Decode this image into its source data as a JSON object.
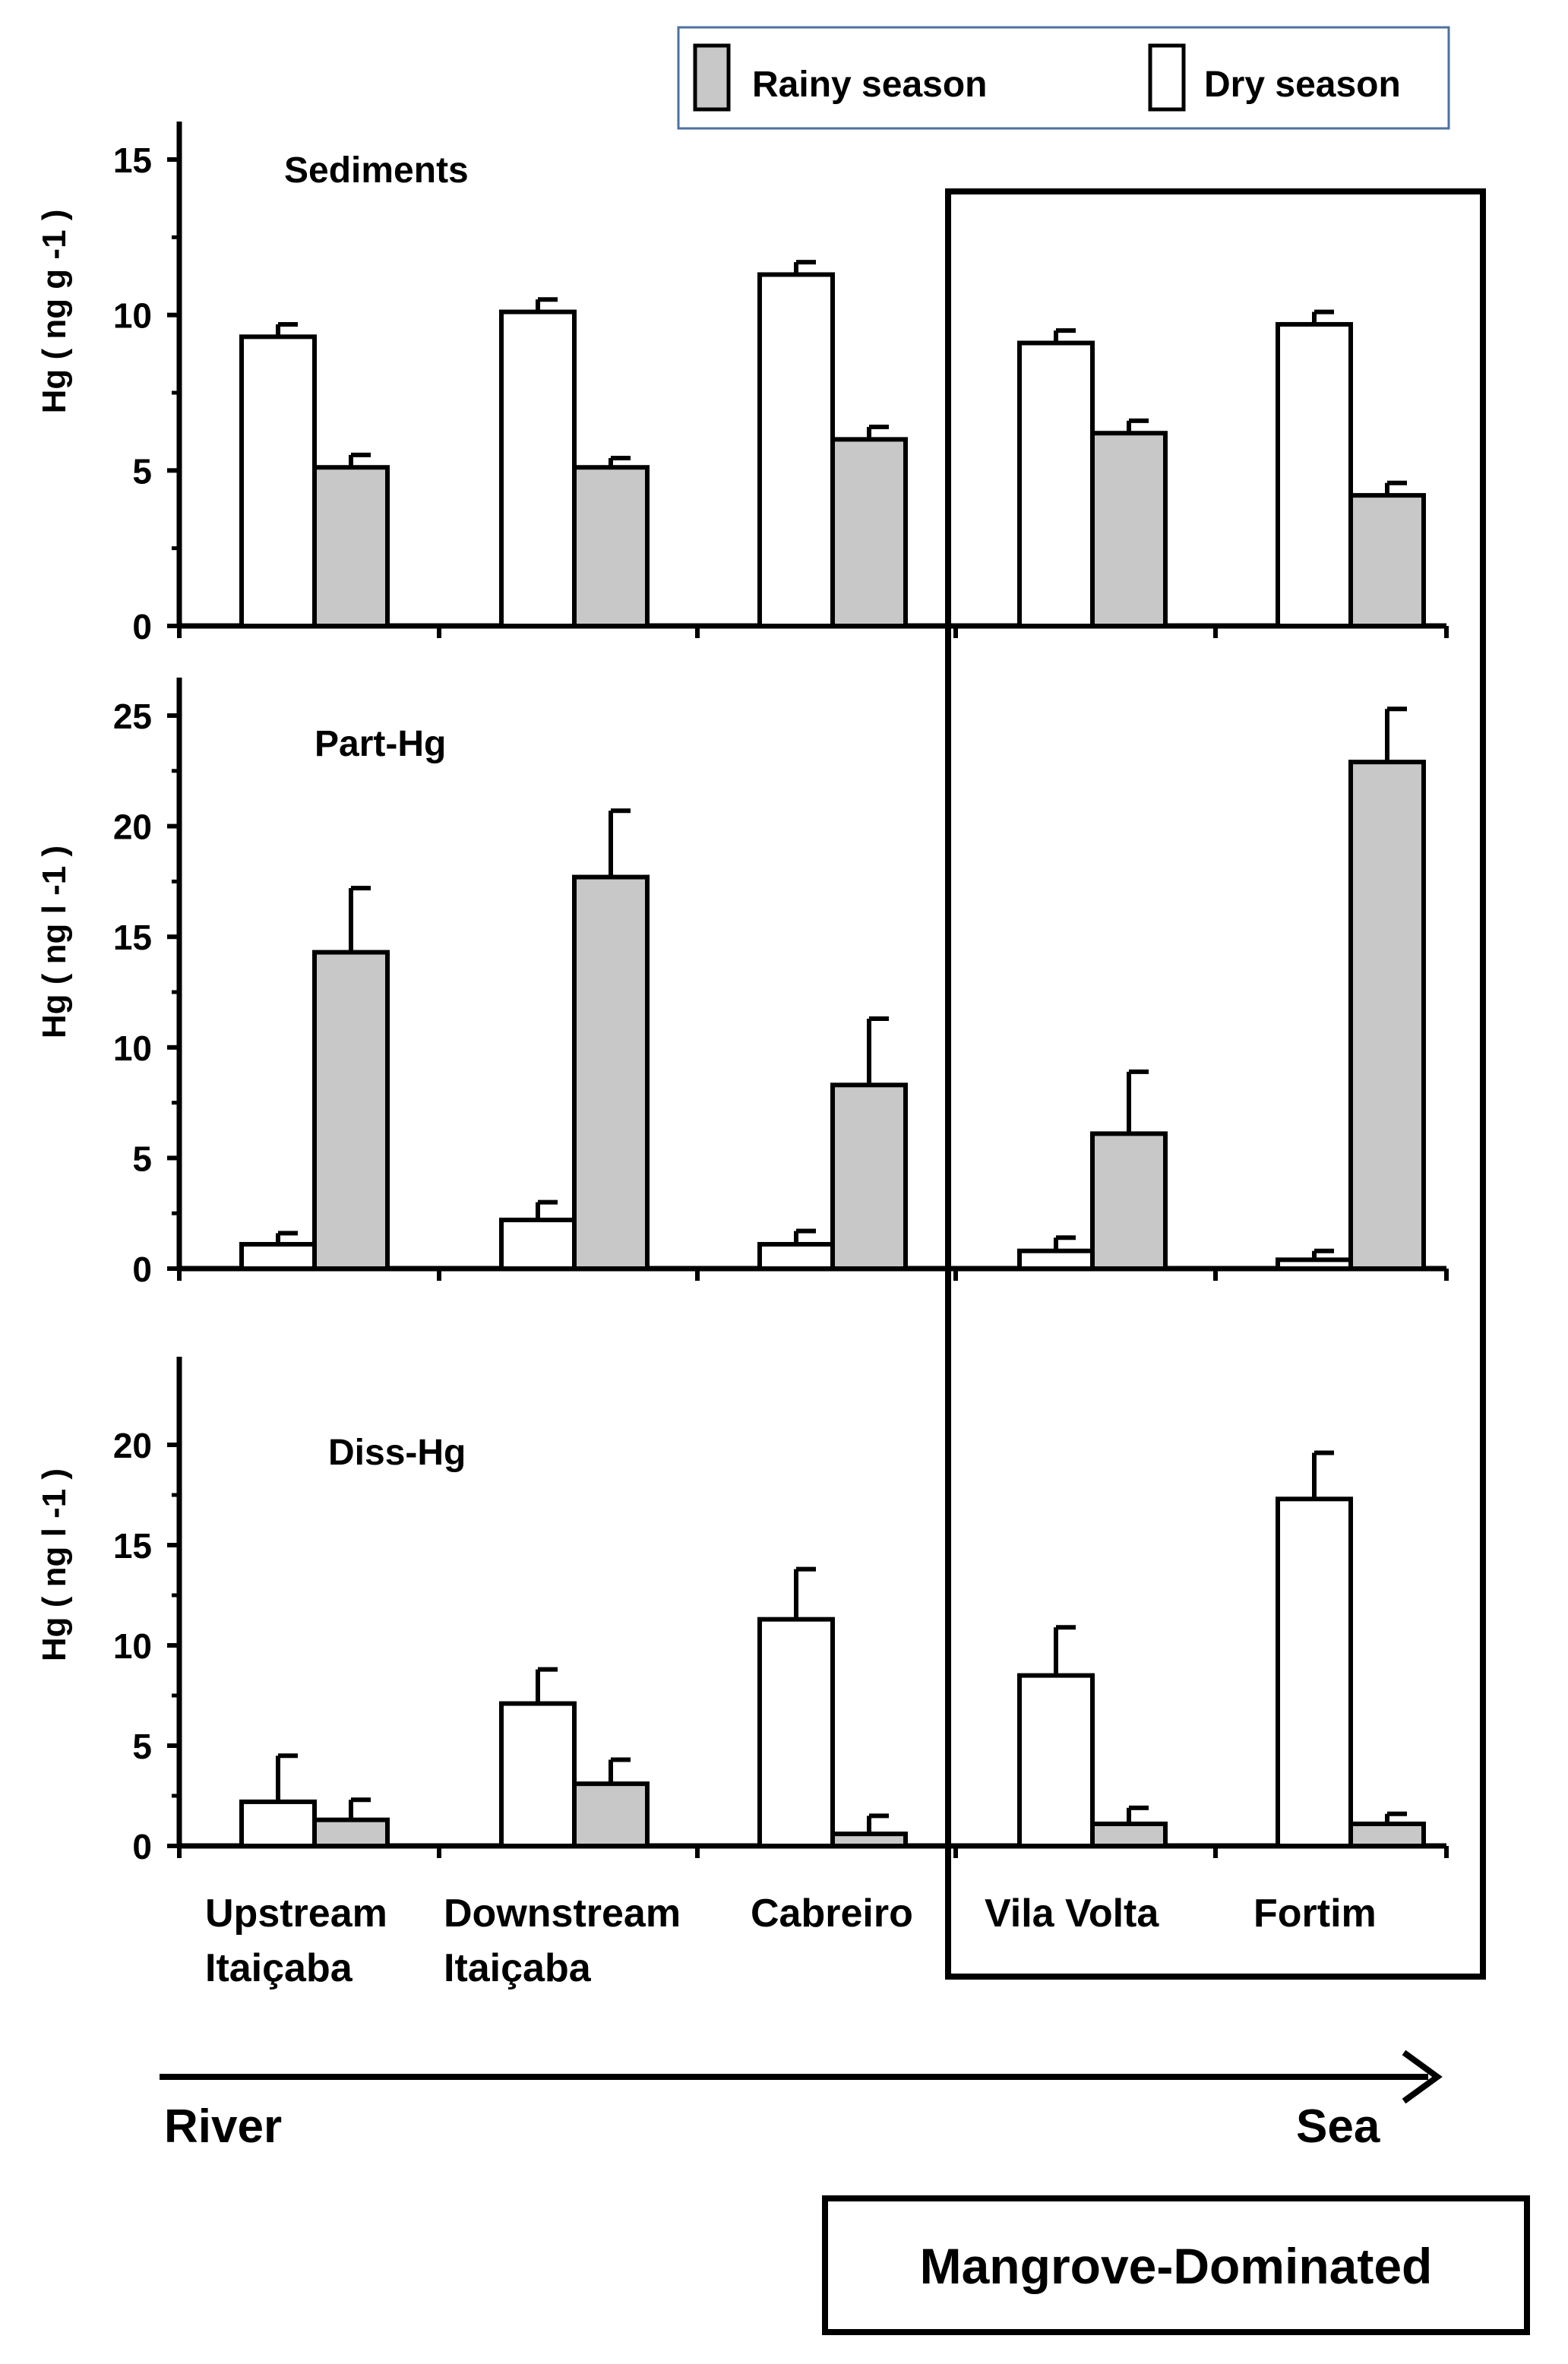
{
  "legend": {
    "rainy_label": "Rainy season",
    "dry_label": "Dry season"
  },
  "colors": {
    "rainy": "#c8c8c8",
    "dry": "#ffffff",
    "stroke": "#000000",
    "legend_border": "#4f6f9f"
  },
  "categories": [
    [
      "Upstream",
      "Itaiçaba"
    ],
    [
      "Downstream",
      "Itaiçaba"
    ],
    [
      "Cabreiro"
    ],
    [
      "Vila Volta"
    ],
    [
      "Fortim"
    ]
  ],
  "direction": {
    "left": "River",
    "right": "Sea"
  },
  "region_label": "Mangrove-Dominated",
  "chart_data": [
    {
      "type": "bar",
      "title": "Sediments",
      "ylabel": "Hg ( ng g -1 )",
      "ylim": [
        0,
        15
      ],
      "yticks": [
        0,
        5,
        10,
        15
      ],
      "series": [
        {
          "name": "Dry season",
          "values": [
            9.3,
            10.1,
            11.3,
            9.1,
            9.7
          ],
          "errors": [
            0.4,
            0.4,
            0.4,
            0.4,
            0.4
          ]
        },
        {
          "name": "Rainy season",
          "values": [
            5.1,
            5.1,
            6.0,
            6.2,
            4.2
          ],
          "errors": [
            0.4,
            0.3,
            0.4,
            0.4,
            0.4
          ]
        }
      ]
    },
    {
      "type": "bar",
      "title": "Part-Hg",
      "ylabel": "Hg ( ng l -1 )",
      "ylim": [
        0,
        25
      ],
      "yticks": [
        0,
        5,
        10,
        15,
        20,
        25
      ],
      "series": [
        {
          "name": "Dry season",
          "values": [
            1.1,
            2.2,
            1.1,
            0.8,
            0.4
          ],
          "errors": [
            0.5,
            0.8,
            0.6,
            0.6,
            0.4
          ]
        },
        {
          "name": "Rainy season",
          "values": [
            14.3,
            17.7,
            8.3,
            6.1,
            22.9
          ],
          "errors": [
            2.9,
            3.0,
            3.0,
            2.8,
            2.4
          ]
        }
      ]
    },
    {
      "type": "bar",
      "title": "Diss-Hg",
      "ylabel": "Hg ( ng l -1 )",
      "ylim": [
        0,
        22.5
      ],
      "yticks": [
        0,
        5,
        10,
        15,
        20
      ],
      "series": [
        {
          "name": "Dry season",
          "values": [
            2.2,
            7.1,
            11.3,
            8.5,
            17.3
          ],
          "errors": [
            2.3,
            1.7,
            2.5,
            2.4,
            2.3
          ]
        },
        {
          "name": "Rainy season",
          "values": [
            1.3,
            3.1,
            0.6,
            1.1,
            1.1
          ],
          "errors": [
            1.0,
            1.2,
            0.9,
            0.8,
            0.5
          ]
        }
      ]
    }
  ]
}
